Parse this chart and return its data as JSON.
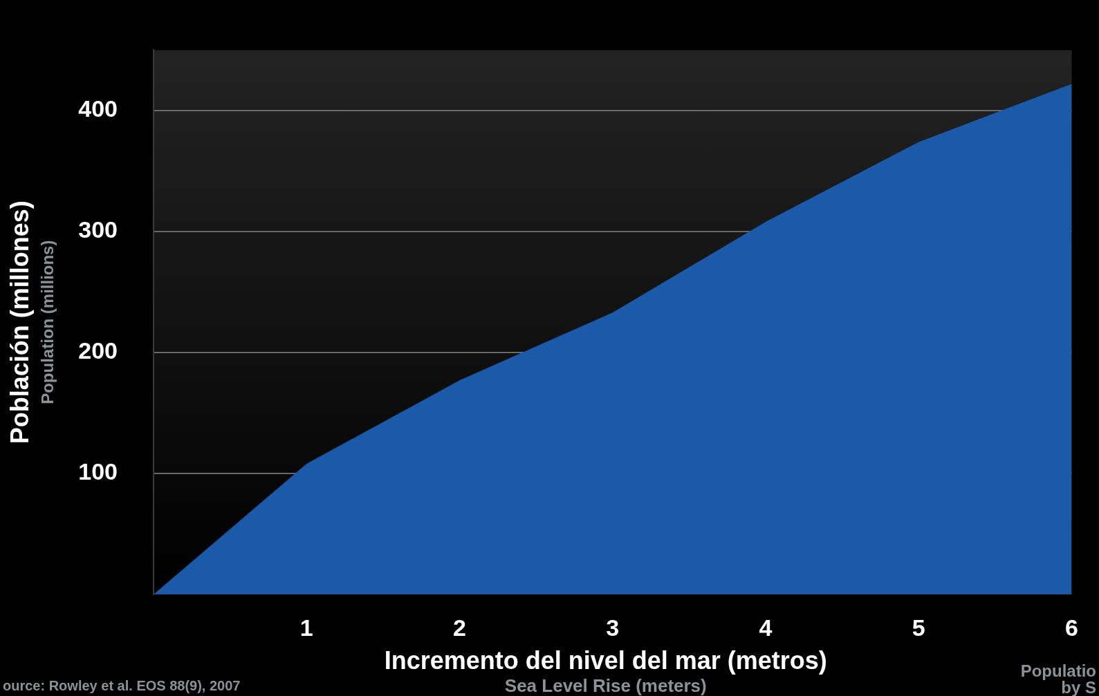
{
  "chart_data": {
    "type": "area",
    "xlabel": "Incremento del nivel del mar (metros)\nSea Level Rise (meters)",
    "ylabel": "Población (millones)\nPopulation (millions)",
    "x": [
      0,
      1,
      2,
      3,
      4,
      5,
      6
    ],
    "series": [
      {
        "color": "#1a5aa8",
        "values": [
          0,
          108,
          177,
          233,
          308,
          374,
          422
        ]
      }
    ],
    "xlim": [
      0,
      6
    ],
    "xticks": [
      1,
      2,
      3,
      4,
      5,
      6
    ],
    "ylim": [
      0,
      450
    ],
    "yticks": [
      100,
      200,
      300,
      400
    ],
    "grid": "y",
    "legend": false,
    "annotations": [
      "ource: Rowley et al. EOS 88(9), 2007",
      "Populatio\nby S"
    ]
  }
}
